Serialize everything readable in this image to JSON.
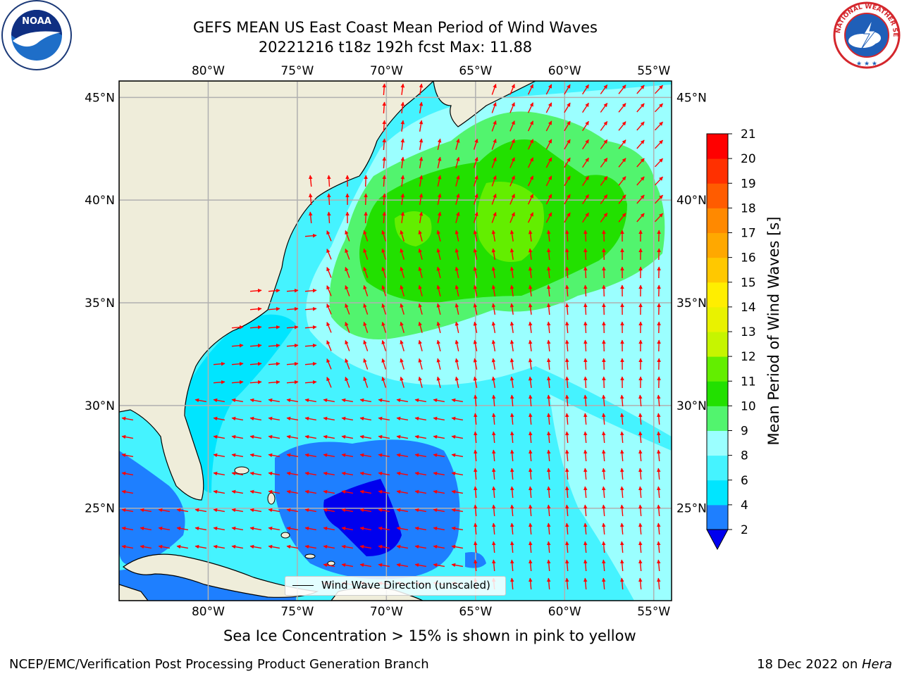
{
  "title": {
    "line1": "GEFS MEAN US East Coast Mean Period of Wind Waves",
    "line2": "20221216 t18z 192h fcst   Max: 11.88"
  },
  "map": {
    "lon_range": [
      -85,
      -54
    ],
    "lat_range": [
      20.5,
      45.8
    ],
    "lon_ticks": [
      "80°W",
      "75°W",
      "70°W",
      "65°W",
      "60°W",
      "55°W"
    ],
    "lon_tick_values": [
      -80,
      -75,
      -70,
      -65,
      -60,
      -55
    ],
    "lat_ticks": [
      "45°N",
      "40°N",
      "35°N",
      "30°N",
      "25°N"
    ],
    "lat_tick_values": [
      45,
      40,
      35,
      30,
      25
    ],
    "grid": true,
    "land_color": "#efedda",
    "arrow_color": "#ff0000"
  },
  "legend": {
    "label": "Wind Wave Direction (unscaled)"
  },
  "colorbar": {
    "label": "Mean Period of Wind Waves [s]",
    "tick_labels": [
      "2",
      "4",
      "6",
      "8",
      "9",
      "10",
      "11",
      "12",
      "13",
      "14",
      "15",
      "16",
      "17",
      "18",
      "19",
      "20",
      "21"
    ],
    "extend": "min",
    "colors": [
      "#0000ee",
      "#1e7fff",
      "#00e5ff",
      "#45f3ff",
      "#9bffff",
      "#52f46e",
      "#22e000",
      "#63ee00",
      "#c6f500",
      "#e9f200",
      "#ffee00",
      "#ffc800",
      "#ffa800",
      "#ff8900",
      "#ff5c00",
      "#ff3000",
      "#ff0000"
    ]
  },
  "footer": {
    "sea_ice": "Sea Ice Concentration > 15% is shown in pink to yellow",
    "credit": "NCEP/EMC/Verification Post Processing Product Generation Branch",
    "date_prefix": "18 Dec 2022 on ",
    "date_machine": "Hera"
  },
  "logos": {
    "noaa_text": "NOAA",
    "nws_text": "NATIONAL WEATHER SERVICE"
  }
}
